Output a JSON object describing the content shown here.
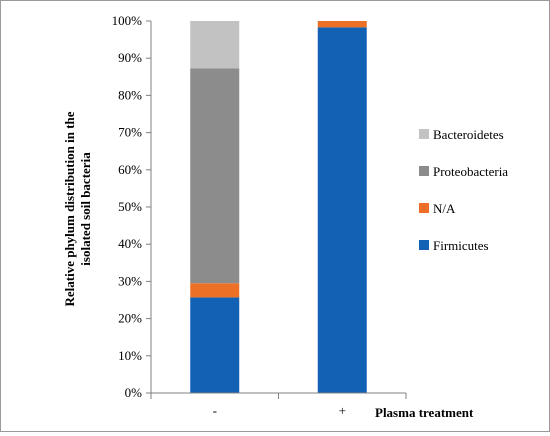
{
  "chart_data": {
    "type": "bar",
    "stacked": true,
    "percent_stacked": true,
    "categories": [
      "-",
      "+"
    ],
    "series": [
      {
        "name": "Firmicutes",
        "values": [
          25.7,
          98.3
        ],
        "color": "#1261b5"
      },
      {
        "name": "N/A",
        "values": [
          3.8,
          1.7
        ],
        "color": "#ec7127"
      },
      {
        "name": "Proteobacteria",
        "values": [
          57.8,
          0
        ],
        "color": "#8c8c8c"
      },
      {
        "name": "Bacteroidetes",
        "values": [
          12.7,
          0
        ],
        "color": "#c2c2c2"
      }
    ],
    "xlabel": "Plasma treatment",
    "ylabel": "Relative phylum distribution in the isolated soil bacteria",
    "ylim": [
      0,
      100
    ],
    "yticks": [
      "0%",
      "10%",
      "20%",
      "30%",
      "40%",
      "50%",
      "60%",
      "70%",
      "80%",
      "90%",
      "100%"
    ],
    "legend_order": [
      "Bacteroidetes",
      "Proteobacteria",
      "N/A",
      "Firmicutes"
    ],
    "legend_position": "right",
    "grid": false
  }
}
